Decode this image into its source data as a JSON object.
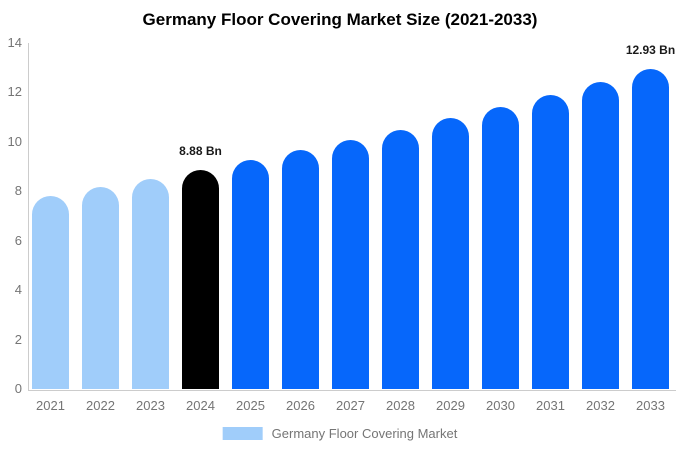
{
  "title": "Germany Floor Covering Market Size (2021-2033)",
  "legend": {
    "label": "Germany Floor Covering Market",
    "swatch_color": "#a0cdfa"
  },
  "colors": {
    "historical_bar": "#a0cdfa",
    "base_year_bar": "#000000",
    "forecast_bar": "#0667fb",
    "axis_line": "#cccccc",
    "tick_text": "#757575",
    "value_label_text": "#1a1a1a",
    "title_text": "#000000"
  },
  "chart_data": {
    "type": "bar",
    "title": "Germany Floor Covering Market Size (2021-2033)",
    "xlabel": "",
    "ylabel": "",
    "unit": "Bn",
    "categories": [
      "2021",
      "2022",
      "2023",
      "2024",
      "2025",
      "2026",
      "2027",
      "2028",
      "2029",
      "2030",
      "2031",
      "2032",
      "2033"
    ],
    "values": [
      7.83,
      8.17,
      8.51,
      8.88,
      9.26,
      9.66,
      10.07,
      10.5,
      10.95,
      11.42,
      11.91,
      12.42,
      12.93
    ],
    "bar_colors": [
      "#a0cdfa",
      "#a0cdfa",
      "#a0cdfa",
      "#000000",
      "#0667fb",
      "#0667fb",
      "#0667fb",
      "#0667fb",
      "#0667fb",
      "#0667fb",
      "#0667fb",
      "#0667fb",
      "#0667fb"
    ],
    "annotations": [
      {
        "category": "2024",
        "text": "8.88 Bn"
      },
      {
        "category": "2033",
        "text": "12.93 Bn"
      }
    ],
    "y_ticks": [
      0,
      2,
      4,
      6,
      8,
      10,
      12,
      14
    ],
    "ylim": [
      0,
      14
    ],
    "grid": false,
    "legend_position": "bottom",
    "legend_entries": [
      "Germany Floor Covering Market"
    ]
  }
}
